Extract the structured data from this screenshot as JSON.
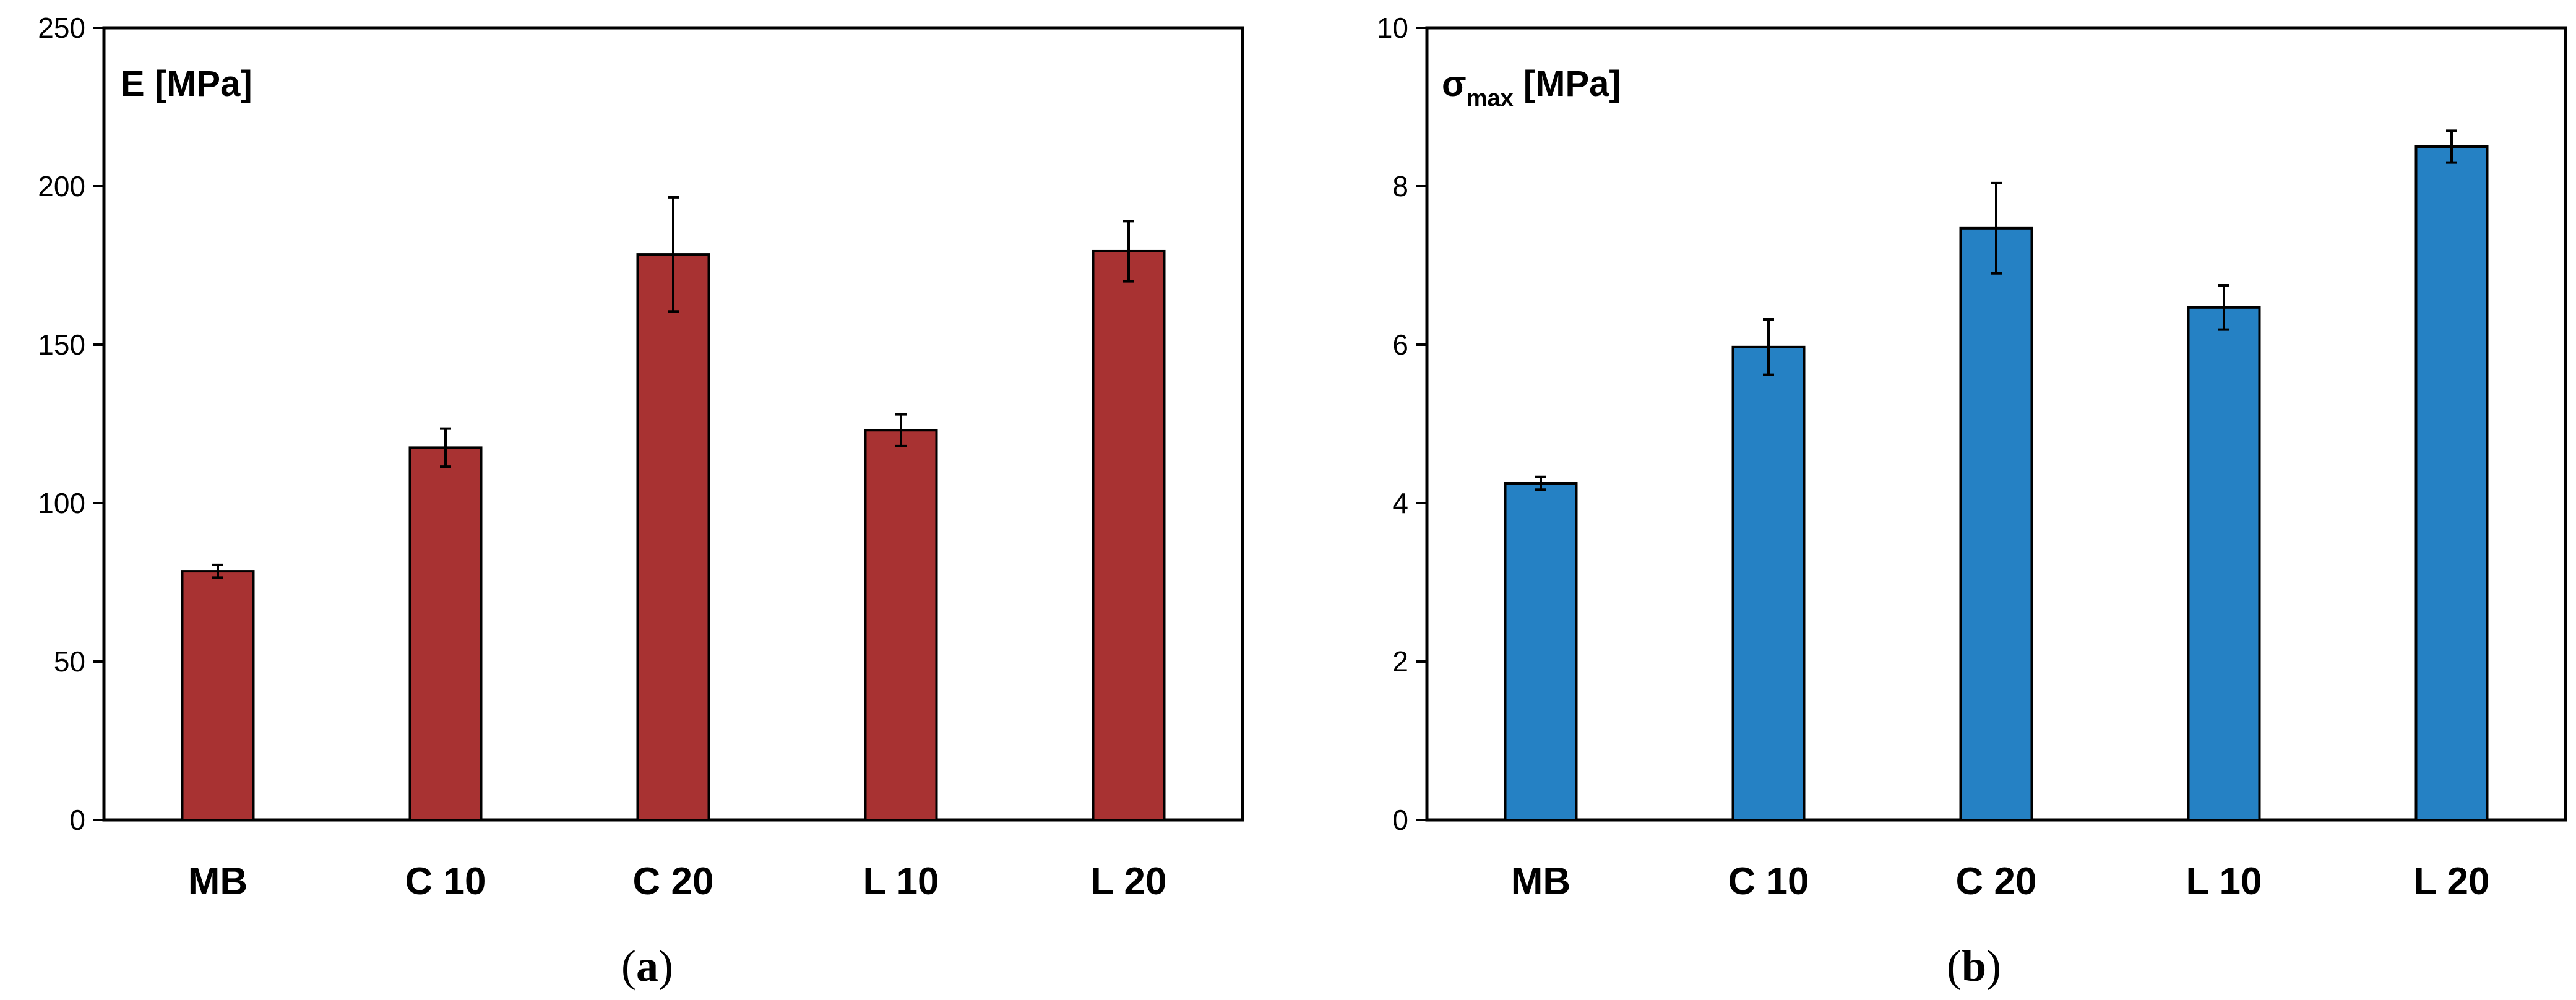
{
  "chart_data": [
    {
      "type": "bar",
      "caption": "a",
      "label_main": "E [MPa]",
      "label_sub": "",
      "categories": [
        "MB",
        "C 10",
        "C 20",
        "L 10",
        "L 20"
      ],
      "values": [
        78.5,
        117.5,
        178.5,
        123,
        179.5
      ],
      "errors": [
        2,
        6,
        18,
        5,
        9.5
      ],
      "ylim": [
        0,
        250
      ],
      "yticks": [
        0,
        50,
        100,
        150,
        200,
        250
      ],
      "grid": false,
      "color": "#a83232"
    },
    {
      "type": "bar",
      "caption": "b",
      "label_main": "σ",
      "label_sub": "max",
      "label_rest": " [MPa]",
      "categories": [
        "MB",
        "C 10",
        "C 20",
        "L 10",
        "L 20"
      ],
      "values": [
        4.25,
        5.97,
        7.47,
        6.47,
        8.5
      ],
      "errors": [
        0.08,
        0.35,
        0.57,
        0.28,
        0.2
      ],
      "ylim": [
        0,
        10
      ],
      "yticks": [
        0,
        2,
        4,
        6,
        8,
        10
      ],
      "grid": false,
      "color": "#2581c4"
    }
  ]
}
